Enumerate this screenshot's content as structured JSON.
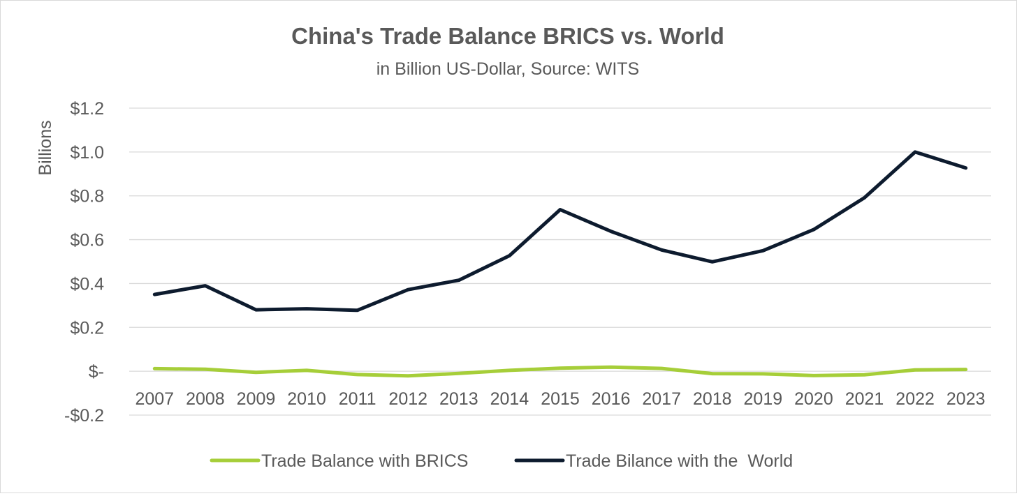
{
  "chart_data": {
    "type": "line",
    "title": "China's Trade Balance BRICS vs. World",
    "subtitle": "in Billion US-Dollar, Source: WITS",
    "ylabel": "Billions",
    "xlabel": "",
    "categories": [
      "2007",
      "2008",
      "2009",
      "2010",
      "2011",
      "2012",
      "2013",
      "2014",
      "2015",
      "2016",
      "2017",
      "2018",
      "2019",
      "2020",
      "2021",
      "2022",
      "2023"
    ],
    "ylim": [
      -0.2,
      1.2
    ],
    "yticks": [
      1.2,
      1.0,
      0.8,
      0.6,
      0.4,
      0.2,
      0.0,
      -0.2
    ],
    "ytick_labels": [
      "$1.2",
      "$1.0",
      "$0.8",
      "$0.6",
      "$0.4",
      "$0.2",
      "$-",
      "-$0.2"
    ],
    "grid": true,
    "legend_position": "bottom",
    "series": [
      {
        "name": "Trade Balance with BRICS",
        "color": "#a6ce39",
        "values": [
          0.012,
          0.009,
          -0.005,
          0.004,
          -0.015,
          -0.021,
          -0.01,
          0.004,
          0.014,
          0.019,
          0.013,
          -0.011,
          -0.012,
          -0.02,
          -0.016,
          0.006,
          0.008
        ]
      },
      {
        "name": "Trade Bilance with the  World",
        "color": "#0d1b2e",
        "values": [
          0.35,
          0.39,
          0.28,
          0.285,
          0.278,
          0.372,
          0.415,
          0.527,
          0.737,
          0.638,
          0.553,
          0.499,
          0.55,
          0.646,
          0.791,
          1.0,
          0.927
        ]
      }
    ]
  }
}
